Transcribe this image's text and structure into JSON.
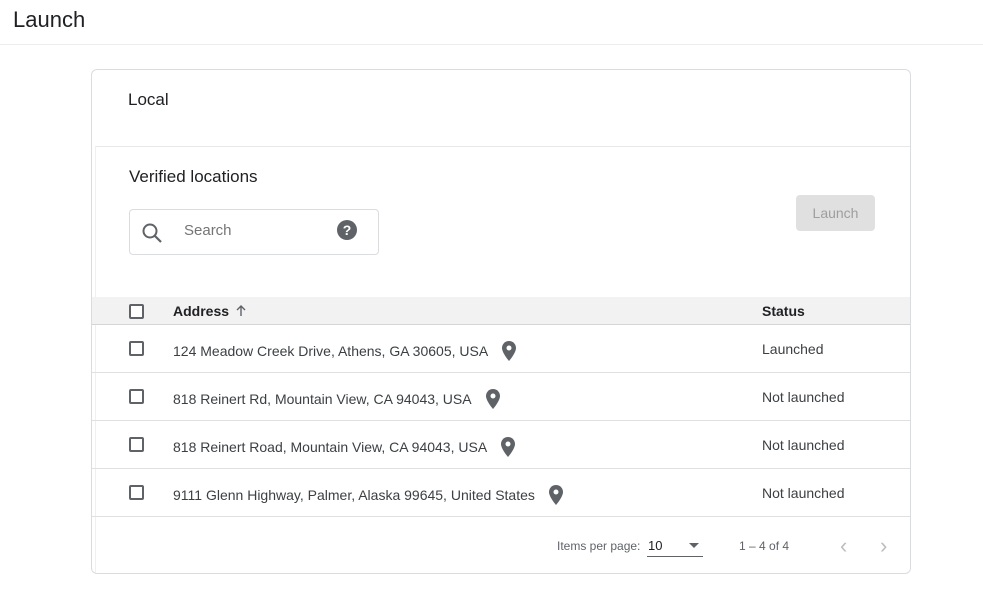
{
  "page": {
    "title": "Launch"
  },
  "card": {
    "section_title": "Local",
    "subsection_title": "Verified locations",
    "search": {
      "placeholder": "Search",
      "value": "",
      "help_icon": "help-icon"
    },
    "launch_button": {
      "label": "Launch",
      "disabled": true
    },
    "table": {
      "columns": [
        "Address",
        "Status"
      ],
      "sort": {
        "column": "Address",
        "direction": "ascending"
      },
      "rows": [
        {
          "address": "124 Meadow Creek Drive, Athens, GA 30605, USA",
          "status": "Launched"
        },
        {
          "address": "818 Reinert Rd, Mountain View, CA 94043, USA",
          "status": "Not launched"
        },
        {
          "address": "818 Reinert Road, Mountain View, CA 94043, USA",
          "status": "Not launched"
        },
        {
          "address": "9111 Glenn Highway, Palmer, Alaska 99645, United States",
          "status": "Not launched"
        }
      ]
    },
    "paginator": {
      "items_per_page_label": "Items per page:",
      "page_size": "10",
      "range": "1 – 4 of 4",
      "prev": "‹",
      "next": "›"
    }
  }
}
